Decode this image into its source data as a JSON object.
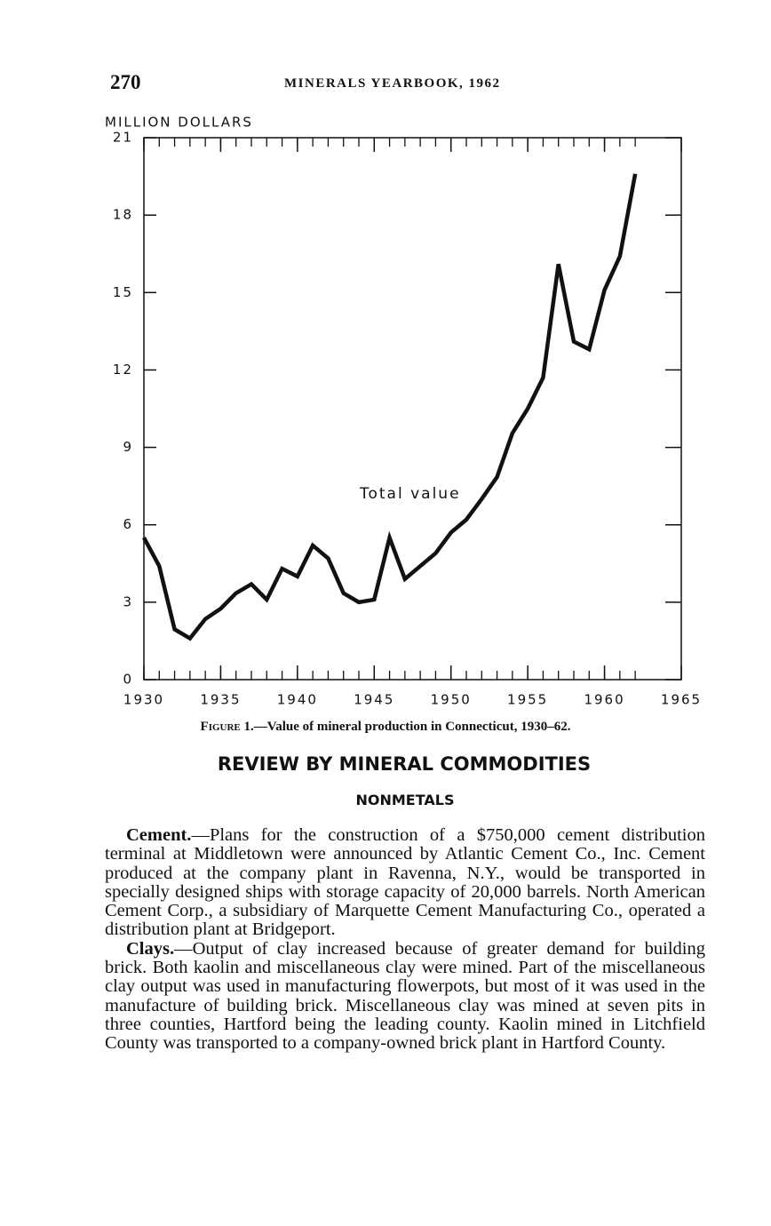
{
  "page": {
    "number": "270",
    "running_head": "MINERALS YEARBOOK, 1962"
  },
  "chart_data": {
    "type": "line",
    "y_axis_label": "MILLION DOLLARS",
    "annotation": "Total value",
    "x": [
      1930,
      1931,
      1932,
      1933,
      1934,
      1935,
      1936,
      1937,
      1938,
      1939,
      1940,
      1941,
      1942,
      1943,
      1944,
      1945,
      1946,
      1947,
      1948,
      1949,
      1950,
      1951,
      1952,
      1953,
      1954,
      1955,
      1956,
      1957,
      1958,
      1959,
      1960,
      1961,
      1962
    ],
    "values": [
      5.5,
      4.4,
      1.95,
      1.6,
      2.35,
      2.75,
      3.35,
      3.7,
      3.1,
      4.3,
      4.0,
      5.2,
      4.7,
      3.35,
      3.0,
      3.1,
      5.5,
      3.9,
      4.4,
      4.9,
      5.7,
      6.2,
      7.0,
      7.85,
      9.55,
      10.5,
      11.7,
      16.1,
      13.1,
      12.8,
      15.1,
      16.4,
      19.6
    ],
    "color": "#111111",
    "xlim": [
      1930,
      1965
    ],
    "xticks": [
      1930,
      1935,
      1940,
      1945,
      1950,
      1955,
      1960,
      1965
    ],
    "ylim": [
      0,
      21
    ],
    "yticks": [
      0,
      3,
      6,
      9,
      12,
      15,
      18,
      21
    ],
    "grid": false
  },
  "caption": {
    "label": "Figure 1.",
    "text": "—Value of mineral production in Connecticut, 1930–62."
  },
  "section": {
    "heading": "REVIEW BY MINERAL COMMODITIES",
    "subheading": "NONMETALS",
    "paragraphs": [
      {
        "lead": "Cement.",
        "text": "—Plans for the construction of a $750,000 cement distribution terminal at Middletown were announced by Atlantic Cement Co., Inc. Cement produced at the company plant in Ravenna, N.Y., would be transported in specially designed ships with storage capacity of 20,000 barrels. North American Cement Corp., a subsidiary of Marquette Cement Manufacturing Co., operated a distribution plant at Bridgeport."
      },
      {
        "lead": "Clays.",
        "text": "—Output of clay increased because of greater demand for building brick. Both kaolin and miscellaneous clay were mined. Part of the miscellaneous clay output was used in manufacturing flowerpots, but most of it was used in the manufacture of building brick. Miscellaneous clay was mined at seven pits in three counties, Hartford being the leading county. Kaolin mined in Litchfield County was transported to a company-owned brick plant in Hartford County."
      }
    ]
  }
}
